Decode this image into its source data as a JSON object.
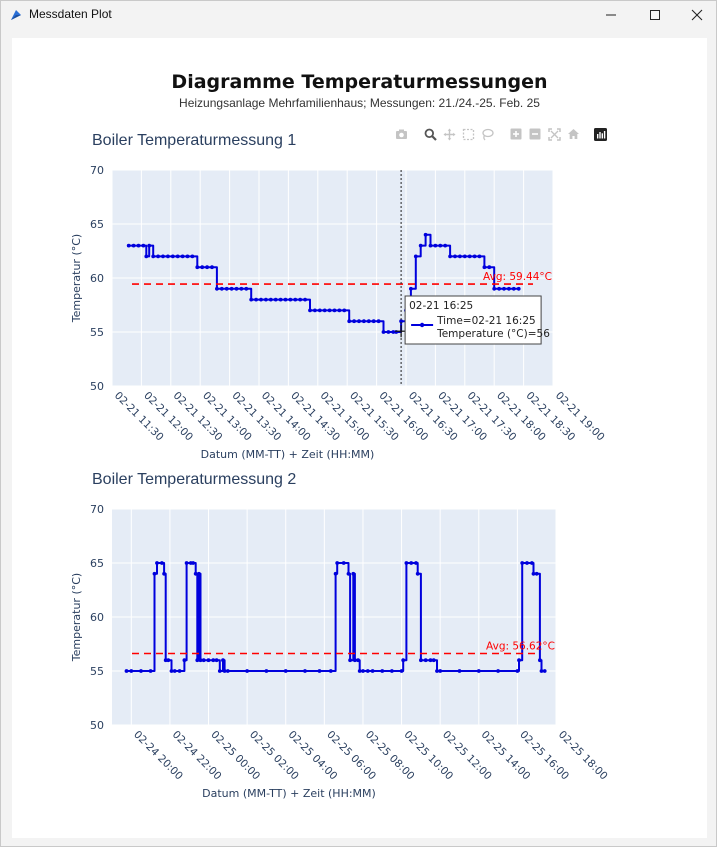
{
  "window": {
    "title": "Messdaten Plot"
  },
  "header": {
    "title": "Diagramme Temperaturmessungen",
    "subtitle": "Heizungsanlage Mehrfamilienhaus; Messungen: 21./24.-25. Feb. 25"
  },
  "toolbar": {
    "icons": [
      "camera-icon",
      "zoom-icon",
      "pan-icon",
      "box-select-icon",
      "lasso-select-icon",
      "zoom-in-icon",
      "zoom-out-icon",
      "autoscale-icon",
      "reset-axes-icon",
      "plotly-logo-icon"
    ]
  },
  "colors": {
    "line": "#0000dd",
    "avg": "#ff0000",
    "plot_bg": "#e5ecf6",
    "title": "#2a3f5f"
  },
  "chart_data": [
    {
      "type": "line",
      "title": "Boiler Temperaturmessung 1",
      "xlabel": "Datum (MM-TT) + Zeit (HH:MM)",
      "ylabel": "Temperatur (°C)",
      "ylim": [
        50,
        70
      ],
      "yticks": [
        "50",
        "55",
        "60",
        "65",
        "70"
      ],
      "xlim": [
        "2025-02-21 11:30",
        "2025-02-21 19:00"
      ],
      "xtick_labels": [
        "02-21 11:30",
        "02-21 12:00",
        "02-21 12:30",
        "02-21 13:00",
        "02-21 13:30",
        "02-21 14:00",
        "02-21 14:30",
        "02-21 15:00",
        "02-21 15:30",
        "02-21 16:00",
        "02-21 16:30",
        "02-21 17:00",
        "02-21 17:30",
        "02-21 18:00",
        "02-21 18:30",
        "02-21 19:00"
      ],
      "average": {
        "value": 59.44,
        "label": "Avg: 59.44°C"
      },
      "hover": {
        "time": "02-21 16:25",
        "line1": "Time=02-21 16:25",
        "line2": "Temperature (°C)=56",
        "x": "2025-02-21 16:25",
        "y": 56
      },
      "series": [
        {
          "x": [
            "2025-02-21 11:47",
            "2025-02-21 11:52",
            "2025-02-21 11:57",
            "2025-02-21 12:02",
            "2025-02-21 12:05",
            "2025-02-21 12:08",
            "2025-02-21 12:12",
            "2025-02-21 12:17",
            "2025-02-21 12:22",
            "2025-02-21 12:27",
            "2025-02-21 12:32",
            "2025-02-21 12:37",
            "2025-02-21 12:42",
            "2025-02-21 12:47",
            "2025-02-21 12:52",
            "2025-02-21 12:57",
            "2025-02-21 13:02",
            "2025-02-21 13:07",
            "2025-02-21 13:12",
            "2025-02-21 13:17",
            "2025-02-21 13:22",
            "2025-02-21 13:27",
            "2025-02-21 13:32",
            "2025-02-21 13:37",
            "2025-02-21 13:42",
            "2025-02-21 13:47",
            "2025-02-21 13:52",
            "2025-02-21 13:57",
            "2025-02-21 14:02",
            "2025-02-21 14:07",
            "2025-02-21 14:12",
            "2025-02-21 14:17",
            "2025-02-21 14:22",
            "2025-02-21 14:27",
            "2025-02-21 14:32",
            "2025-02-21 14:37",
            "2025-02-21 14:42",
            "2025-02-21 14:47",
            "2025-02-21 14:52",
            "2025-02-21 14:57",
            "2025-02-21 15:02",
            "2025-02-21 15:07",
            "2025-02-21 15:12",
            "2025-02-21 15:17",
            "2025-02-21 15:22",
            "2025-02-21 15:27",
            "2025-02-21 15:32",
            "2025-02-21 15:37",
            "2025-02-21 15:42",
            "2025-02-21 15:47",
            "2025-02-21 15:52",
            "2025-02-21 15:57",
            "2025-02-21 16:02",
            "2025-02-21 16:07",
            "2025-02-21 16:12",
            "2025-02-21 16:17",
            "2025-02-21 16:20",
            "2025-02-21 16:25",
            "2025-02-21 16:30",
            "2025-02-21 16:35",
            "2025-02-21 16:40",
            "2025-02-21 16:45",
            "2025-02-21 16:50",
            "2025-02-21 16:55",
            "2025-02-21 17:00",
            "2025-02-21 17:05",
            "2025-02-21 17:10",
            "2025-02-21 17:15",
            "2025-02-21 17:20",
            "2025-02-21 17:25",
            "2025-02-21 17:30",
            "2025-02-21 17:35",
            "2025-02-21 17:40",
            "2025-02-21 17:45",
            "2025-02-21 17:50",
            "2025-02-21 17:55",
            "2025-02-21 18:00",
            "2025-02-21 18:05",
            "2025-02-21 18:10",
            "2025-02-21 18:15",
            "2025-02-21 18:20",
            "2025-02-21 18:25"
          ],
          "y": [
            63,
            63,
            63,
            63,
            62,
            63,
            62,
            62,
            62,
            62,
            62,
            62,
            62,
            62,
            62,
            61,
            61,
            61,
            61,
            59,
            59,
            59,
            59,
            59,
            59,
            59,
            58,
            58,
            58,
            58,
            58,
            58,
            58,
            58,
            58,
            58,
            58,
            58,
            57,
            57,
            57,
            57,
            57,
            57,
            57,
            57,
            56,
            56,
            56,
            56,
            56,
            56,
            56,
            55,
            55,
            55,
            55,
            56,
            57,
            59,
            62,
            63,
            64,
            63,
            63,
            63,
            63,
            62,
            62,
            62,
            62,
            62,
            62,
            62,
            61,
            61,
            59,
            59,
            59,
            59,
            59,
            59
          ]
        }
      ]
    },
    {
      "type": "line",
      "title": "Boiler Temperaturmessung 2",
      "xlabel": "Datum (MM-TT) + Zeit (HH:MM)",
      "ylabel": "Temperatur (°C)",
      "ylim": [
        50,
        70
      ],
      "yticks": [
        "50",
        "55",
        "60",
        "65",
        "70"
      ],
      "xlim": [
        "2025-02-24 19:00",
        "2025-02-25 18:00"
      ],
      "xtick_labels": [
        "02-24 20:00",
        "02-24 22:00",
        "02-25 00:00",
        "02-25 02:00",
        "02-25 04:00",
        "02-25 06:00",
        "02-25 08:00",
        "02-25 10:00",
        "02-25 12:00",
        "02-25 14:00",
        "02-25 16:00",
        "02-25 18:00"
      ],
      "average": {
        "value": 56.62,
        "label": "Avg: 56.62°C"
      },
      "series": [
        {
          "x": [
            "2025-02-24 19:45",
            "2025-02-24 20:00",
            "2025-02-24 20:30",
            "2025-02-24 21:00",
            "2025-02-24 21:12",
            "2025-02-24 21:20",
            "2025-02-24 21:35",
            "2025-02-24 21:42",
            "2025-02-24 21:47",
            "2025-02-24 21:55",
            "2025-02-24 22:05",
            "2025-02-24 22:15",
            "2025-02-24 22:30",
            "2025-02-24 22:45",
            "2025-02-24 22:52",
            "2025-02-24 23:05",
            "2025-02-24 23:12",
            "2025-02-24 23:20",
            "2025-02-24 23:25",
            "2025-02-24 23:30",
            "2025-02-24 23:35",
            "2025-02-24 23:45",
            "2025-02-25 00:00",
            "2025-02-25 00:15",
            "2025-02-25 00:25",
            "2025-02-25 00:35",
            "2025-02-25 00:45",
            "2025-02-25 00:50",
            "2025-02-25 01:00",
            "2025-02-25 02:00",
            "2025-02-25 03:00",
            "2025-02-25 04:00",
            "2025-02-25 05:00",
            "2025-02-25 05:45",
            "2025-02-25 06:20",
            "2025-02-25 06:35",
            "2025-02-25 06:40",
            "2025-02-25 07:00",
            "2025-02-25 07:15",
            "2025-02-25 07:20",
            "2025-02-25 07:30",
            "2025-02-25 07:35",
            "2025-02-25 07:45",
            "2025-02-25 07:50",
            "2025-02-25 08:00",
            "2025-02-25 08:15",
            "2025-02-25 08:30",
            "2025-02-25 09:00",
            "2025-02-25 09:30",
            "2025-02-25 10:00",
            "2025-02-25 10:05",
            "2025-02-25 10:15",
            "2025-02-25 10:30",
            "2025-02-25 10:45",
            "2025-02-25 10:50",
            "2025-02-25 11:00",
            "2025-02-25 11:15",
            "2025-02-25 11:30",
            "2025-02-25 11:40",
            "2025-02-25 11:50",
            "2025-02-25 12:00",
            "2025-02-25 13:00",
            "2025-02-25 14:00",
            "2025-02-25 15:00",
            "2025-02-25 16:00",
            "2025-02-25 16:05",
            "2025-02-25 16:15",
            "2025-02-25 16:30",
            "2025-02-25 16:45",
            "2025-02-25 16:50",
            "2025-02-25 17:00",
            "2025-02-25 17:10",
            "2025-02-25 17:15",
            "2025-02-25 17:25"
          ],
          "y": [
            55,
            55,
            55,
            55,
            64,
            65,
            65,
            64,
            56,
            56,
            55,
            55,
            55,
            56,
            65,
            65,
            65,
            64,
            56,
            64,
            56,
            56,
            56,
            56,
            56,
            55,
            56,
            55,
            55,
            55,
            55,
            55,
            55,
            55,
            55,
            64,
            65,
            65,
            64,
            56,
            64,
            56,
            56,
            55,
            55,
            55,
            55,
            55,
            55,
            55,
            56,
            65,
            65,
            65,
            64,
            56,
            56,
            56,
            56,
            55,
            55,
            55,
            55,
            55,
            55,
            56,
            65,
            65,
            65,
            64,
            64,
            56,
            55,
            55
          ]
        }
      ]
    }
  ]
}
